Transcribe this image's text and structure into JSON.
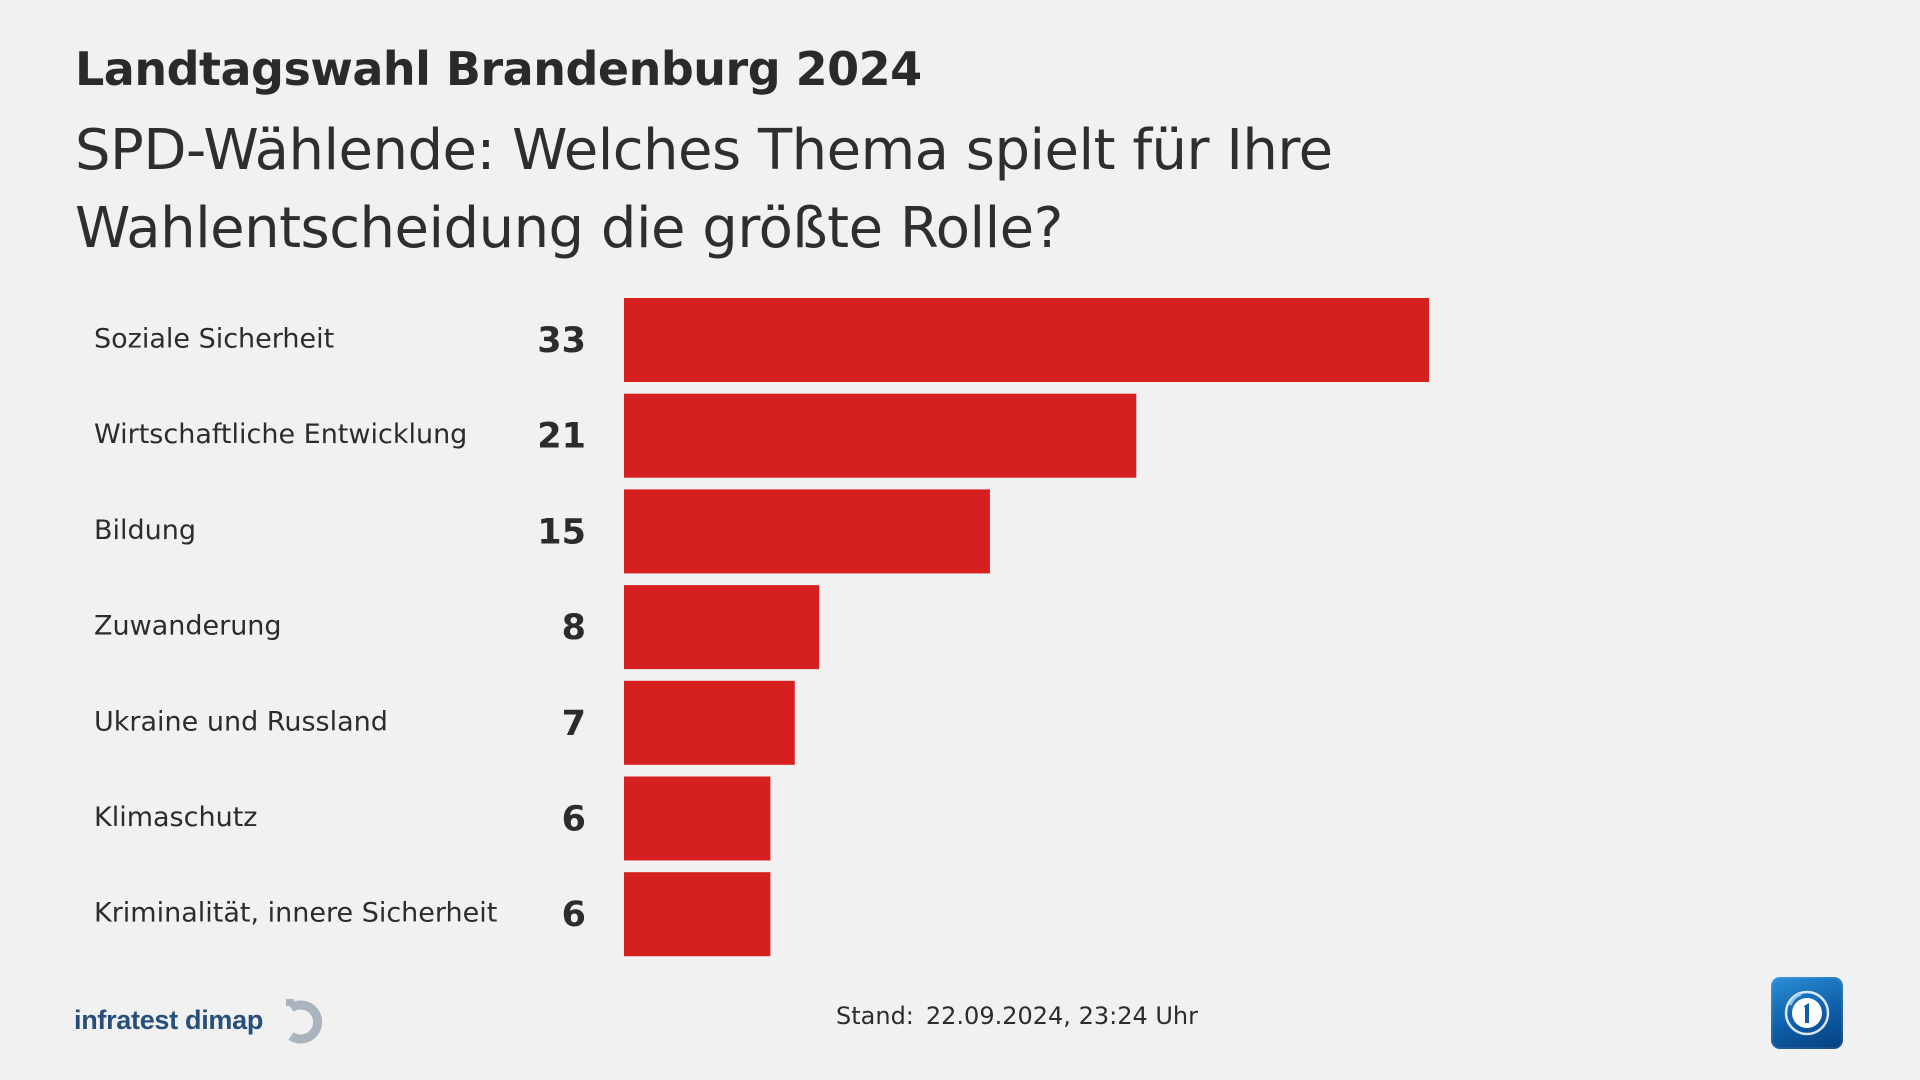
{
  "header": {
    "kicker": "Landtagswahl Brandenburg 2024",
    "title": "SPD-Wählende: Welches Thema spielt für Ihre Wahlentscheidung die größte Rolle?"
  },
  "chart_data": {
    "type": "bar",
    "orientation": "horizontal",
    "title": "SPD-Wählende: Welches Thema spielt für Ihre Wahlentscheidung die größte Rolle?",
    "categories": [
      "Soziale Sicherheit",
      "Wirtschaftliche Entwicklung",
      "Bildung",
      "Zuwanderung",
      "Ukraine und Russland",
      "Klimaschutz",
      "Kriminalität, innere Sicherheit"
    ],
    "values": [
      33,
      21,
      15,
      8,
      7,
      6,
      6
    ],
    "value_labels": [
      "33",
      "21",
      "15",
      "8",
      "7",
      "6",
      "6"
    ],
    "bar_color": "#d61f1f",
    "grid": false,
    "legend": "none"
  },
  "footer": {
    "source": "infratest dimap",
    "stand_label": "Stand:",
    "stand_value": "22.09.2024, 23:24 Uhr"
  },
  "icons": {
    "source_mark": "infratest-dimap-logo-icon",
    "broadcaster": "ard-tagesschau-logo-icon"
  },
  "colors": {
    "background": "#f1f1f1",
    "bar": "#d61f1f",
    "source_brand": "#284f7a",
    "broadcaster_blue": "#0e5ea8"
  }
}
